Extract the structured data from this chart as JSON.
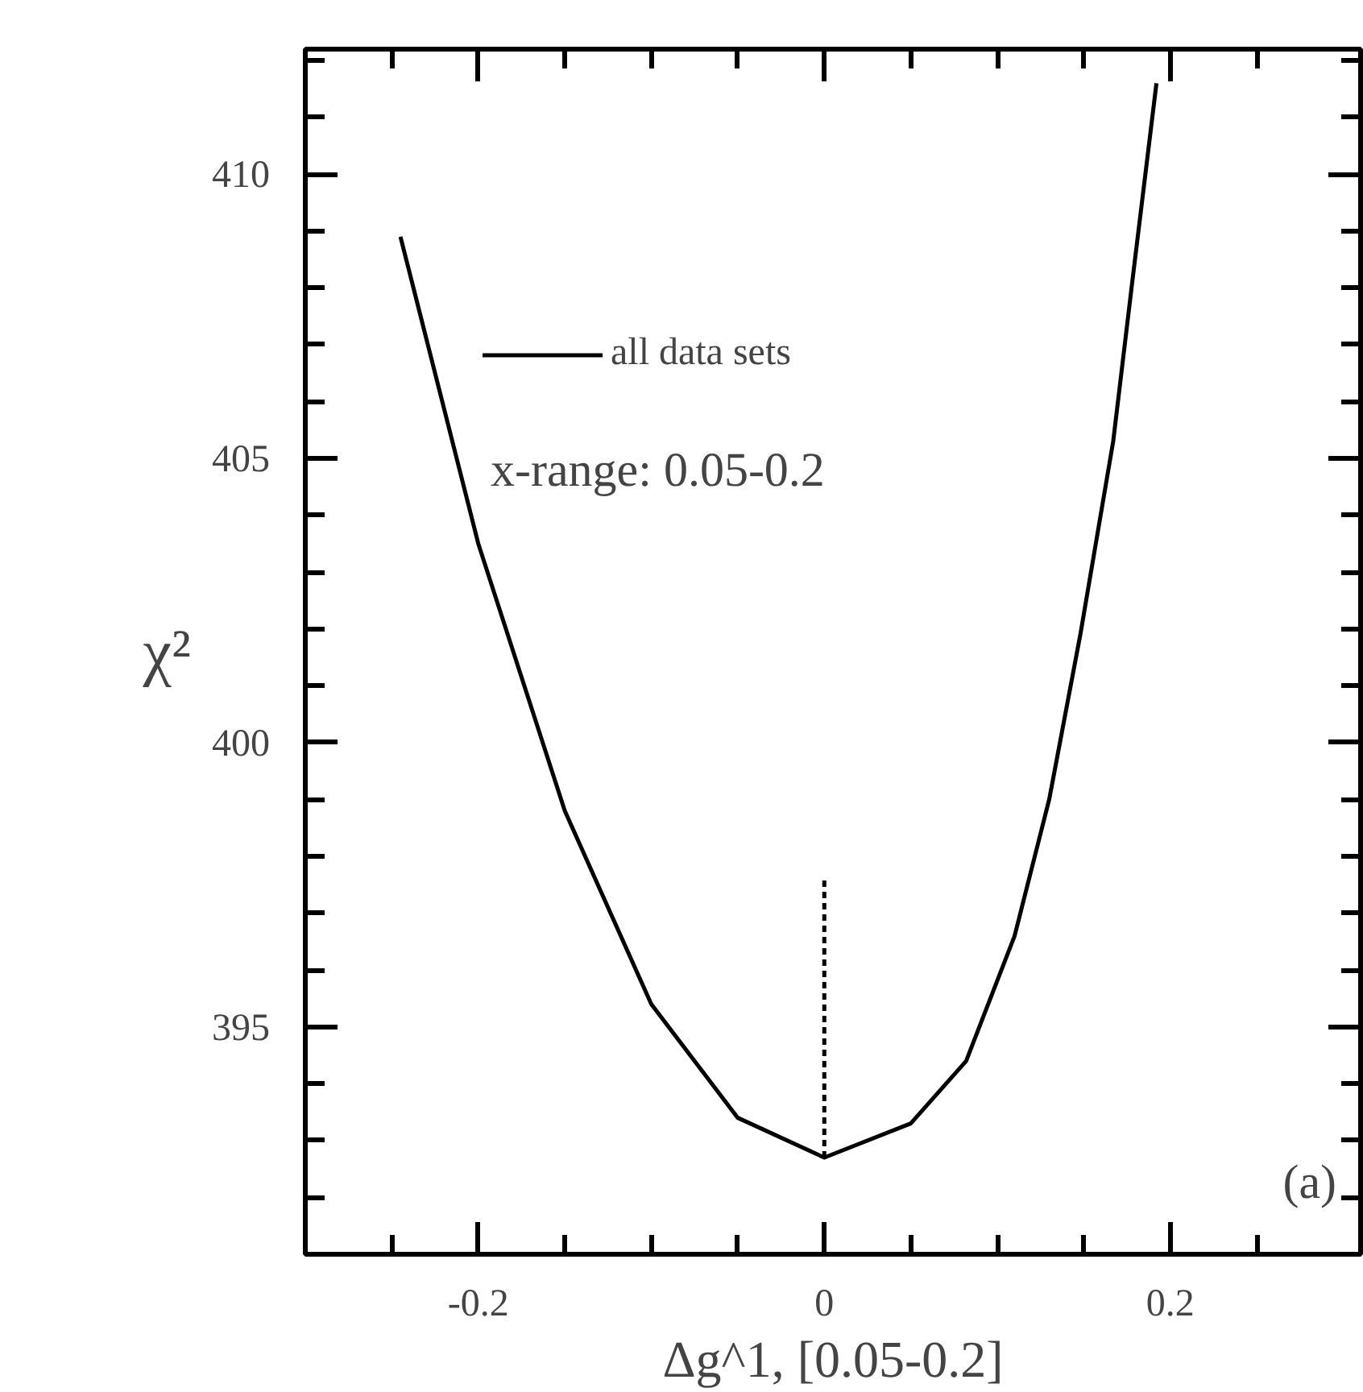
{
  "chart_data": {
    "type": "line",
    "xlabel": "Δg^1, [0.05-0.2]",
    "ylabel": "χ²",
    "xlim": [
      -0.3,
      0.31
    ],
    "ylim": [
      391,
      412.2
    ],
    "xticks": [
      {
        "value": -0.25,
        "label": null
      },
      -0.2,
      {
        "value": -0.15,
        "label": null
      },
      {
        "value": -0.1,
        "label": null
      },
      {
        "value": -0.05,
        "label": null
      },
      0,
      {
        "value": 0.05,
        "label": null
      },
      {
        "value": 0.1,
        "label": null
      },
      {
        "value": 0.15,
        "label": null
      },
      0.2,
      {
        "value": 0.25,
        "label": null
      }
    ],
    "yticks": [
      {
        "value": 392,
        "label": null
      },
      {
        "value": 393,
        "label": null
      },
      {
        "value": 394,
        "label": null
      },
      395,
      {
        "value": 396,
        "label": null
      },
      {
        "value": 397,
        "label": null
      },
      {
        "value": 398,
        "label": null
      },
      {
        "value": 399,
        "label": null
      },
      400,
      {
        "value": 401,
        "label": null
      },
      {
        "value": 402,
        "label": null
      },
      {
        "value": 403,
        "label": null
      },
      {
        "value": 404,
        "label": null
      },
      405,
      {
        "value": 406,
        "label": null
      },
      {
        "value": 407,
        "label": null
      },
      {
        "value": 408,
        "label": null
      },
      {
        "value": 409,
        "label": null
      },
      410,
      {
        "value": 411,
        "label": null
      },
      {
        "value": 412,
        "label": null
      }
    ],
    "series": [
      {
        "name": "all data sets",
        "color": "#000000",
        "x": [
          -0.245,
          -0.2,
          -0.15,
          -0.1,
          -0.05,
          0,
          0.05,
          0.082,
          0.11,
          0.13,
          0.148,
          0.167,
          0.178,
          0.192
        ],
        "values": [
          408.9,
          403.5,
          398.8,
          395.4,
          393.4,
          392.7,
          393.3,
          394.4,
          396.6,
          399.0,
          401.9,
          405.3,
          408.1,
          411.6
        ]
      },
      {
        "color": "#000000",
        "line_style": "dashed",
        "x": [
          0,
          0
        ],
        "values": [
          392.7,
          397.6
        ]
      }
    ],
    "annotations": [
      "x-range: 0.05-0.2",
      "(a)"
    ],
    "legend": "top left",
    "grid": false,
    "marker": "none",
    "line_style": "solid"
  }
}
